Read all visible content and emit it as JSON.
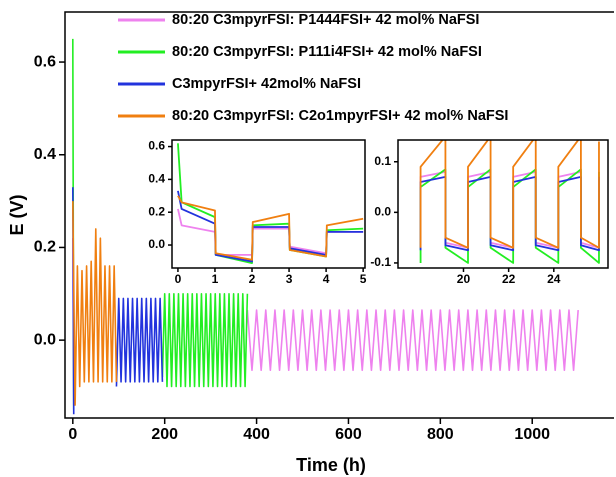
{
  "chart_data": [
    {
      "type": "line",
      "xlabel": "Time (h)",
      "ylabel": "E (V)",
      "xlim": [
        -17,
        1178
      ],
      "ylim": [
        -0.168,
        0.708
      ],
      "xticks": [
        0,
        200,
        400,
        600,
        800,
        1000
      ],
      "yticks": [
        {
          "value": 0,
          "label": "0.0"
        },
        0.2,
        0.4,
        0.6
      ],
      "legend": "top",
      "series": [
        {
          "name": "80:20 C3mpyrFSI: P1444FSI+ 42 mol% NaFSI",
          "color": "#ee82ee",
          "x": [
            0,
            2,
            100,
            380,
            390,
            400,
            410,
            420,
            430,
            440,
            450,
            460,
            470,
            480,
            490,
            500,
            510,
            520,
            530,
            540,
            550,
            560,
            570,
            580,
            590,
            600,
            610,
            620,
            630,
            640,
            650,
            660,
            670,
            680,
            690,
            700,
            710,
            720,
            730,
            740,
            750,
            760,
            770,
            780,
            790,
            800,
            810,
            820,
            830,
            840,
            850,
            860,
            870,
            880,
            890,
            900,
            910,
            920,
            930,
            940,
            950,
            960,
            970,
            980,
            990,
            1000,
            1010,
            1020,
            1030,
            1040,
            1050,
            1060,
            1070,
            1080,
            1090,
            1100
          ],
          "values": [
            0.22,
            -0.14,
            null,
            0.065,
            -0.065,
            0.065,
            -0.065,
            0.065,
            -0.065,
            0.065,
            -0.065,
            0.065,
            -0.065,
            0.065,
            -0.065,
            0.065,
            -0.065,
            0.065,
            -0.065,
            0.065,
            -0.065,
            0.065,
            -0.065,
            0.065,
            -0.065,
            0.065,
            -0.065,
            0.065,
            -0.065,
            0.065,
            -0.065,
            0.065,
            -0.065,
            0.065,
            -0.065,
            0.065,
            -0.065,
            0.065,
            -0.065,
            0.065,
            -0.065,
            0.065,
            -0.065,
            0.065,
            -0.065,
            0.065,
            -0.065,
            0.065,
            -0.065,
            0.065,
            -0.065,
            0.065,
            -0.065,
            0.065,
            -0.065,
            0.065,
            -0.065,
            0.065,
            -0.065,
            0.065,
            -0.065,
            0.065,
            -0.065,
            0.065,
            -0.065,
            0.065,
            -0.065,
            0.065,
            -0.065,
            0.065,
            -0.065,
            0.065,
            -0.065,
            0.065,
            -0.065,
            0.065
          ]
        },
        {
          "name": "80:20 C3mpyrFSI: P111i4FSI+ 42 mol% NaFSI",
          "color": "#22ee22",
          "x": [
            0,
            2,
            100,
            195,
            200,
            205,
            210,
            215,
            220,
            225,
            230,
            235,
            240,
            245,
            250,
            255,
            260,
            265,
            270,
            275,
            280,
            285,
            290,
            295,
            300,
            305,
            310,
            315,
            320,
            325,
            330,
            335,
            340,
            345,
            350,
            355,
            360,
            365,
            370,
            375,
            380
          ],
          "values": [
            0.65,
            -0.15,
            null,
            -0.08,
            0.1,
            -0.1,
            0.1,
            -0.1,
            0.1,
            -0.1,
            0.1,
            -0.1,
            0.1,
            -0.1,
            0.1,
            -0.1,
            0.1,
            -0.1,
            0.1,
            -0.1,
            0.1,
            -0.1,
            0.1,
            -0.1,
            0.1,
            -0.1,
            0.1,
            -0.1,
            0.1,
            -0.1,
            0.1,
            -0.1,
            0.1,
            -0.1,
            0.1,
            -0.1,
            0.1,
            -0.1,
            0.1,
            -0.1,
            0.1
          ]
        },
        {
          "name": "C3mpyrFSI+ 42mol% NaFSI",
          "color": "#2233dd",
          "x": [
            0,
            2,
            50,
            95,
            100,
            105,
            110,
            115,
            120,
            125,
            130,
            135,
            140,
            145,
            150,
            155,
            160,
            165,
            170,
            175,
            180,
            185,
            190,
            195
          ],
          "values": [
            0.33,
            -0.16,
            null,
            -0.1,
            0.09,
            -0.09,
            0.09,
            -0.09,
            0.09,
            -0.09,
            0.09,
            -0.09,
            0.09,
            -0.09,
            0.09,
            -0.09,
            0.09,
            -0.09,
            0.09,
            -0.09,
            0.09,
            -0.09,
            0.09,
            -0.09
          ]
        },
        {
          "name": "80:20 C3mpyrFSI: C2o1mpyrFSI+ 42 mol% NaFSI",
          "color": "#f07f10",
          "x": [
            0,
            5,
            10,
            15,
            20,
            25,
            30,
            35,
            40,
            45,
            50,
            55,
            60,
            65,
            70,
            75,
            80,
            85,
            90,
            95
          ],
          "values": [
            0.3,
            -0.14,
            0.16,
            -0.1,
            0.15,
            -0.09,
            0.16,
            -0.09,
            0.17,
            -0.09,
            0.24,
            -0.09,
            0.22,
            -0.09,
            0.16,
            -0.09,
            0.16,
            -0.09,
            0.16,
            -0.09
          ]
        }
      ]
    },
    {
      "type": "line",
      "xlim": [
        -0.16,
        5.05
      ],
      "ylim": [
        -0.14,
        0.64
      ],
      "xticks": [
        0,
        1,
        2,
        3,
        4,
        5
      ],
      "yticks": [
        {
          "value": 0,
          "label": "0.0"
        },
        0.2,
        0.4,
        0.6
      ],
      "x": [
        0,
        0.1,
        1,
        1.02,
        2,
        2.02,
        3,
        3.02,
        4,
        4.02,
        5
      ],
      "series": [
        {
          "color": "#ee82ee",
          "values": [
            0.22,
            0.12,
            0.08,
            -0.06,
            -0.06,
            0.1,
            0.1,
            -0.01,
            -0.05,
            0.08,
            0.08
          ]
        },
        {
          "color": "#22ee22",
          "values": [
            0.62,
            0.26,
            0.17,
            -0.06,
            -0.11,
            0.12,
            0.13,
            -0.03,
            -0.07,
            0.09,
            0.1
          ]
        },
        {
          "color": "#2233dd",
          "values": [
            0.33,
            0.22,
            0.13,
            -0.06,
            -0.1,
            0.11,
            0.11,
            -0.02,
            -0.06,
            0.08,
            0.08
          ]
        },
        {
          "color": "#f07f10",
          "values": [
            0.3,
            0.26,
            0.21,
            -0.05,
            -0.09,
            0.14,
            0.19,
            -0.03,
            -0.07,
            0.12,
            0.16
          ]
        }
      ]
    },
    {
      "type": "line",
      "xlim": [
        17.1,
        26.4
      ],
      "ylim": [
        -0.11,
        0.143
      ],
      "xticks": [
        20,
        22,
        24
      ],
      "yticks": [
        -0.1,
        {
          "value": 0,
          "label": "0.0"
        },
        0.1
      ],
      "x": [
        18.1,
        18.1,
        19.2,
        19.2,
        20.2,
        20.2,
        21.2,
        21.2,
        22.2,
        22.2,
        23.2,
        23.2,
        24.2,
        24.2,
        25.2,
        25.2,
        26.0,
        26.0
      ],
      "series": [
        {
          "color": "#ee82ee",
          "values": [
            -0.07,
            0.07,
            0.08,
            -0.06,
            -0.07,
            0.07,
            0.08,
            -0.06,
            -0.07,
            0.07,
            0.08,
            -0.06,
            -0.07,
            0.07,
            0.08,
            -0.06,
            -0.07,
            0.07
          ]
        },
        {
          "color": "#22ee22",
          "values": [
            -0.1,
            0.05,
            0.085,
            -0.07,
            -0.1,
            0.05,
            0.085,
            -0.07,
            -0.1,
            0.05,
            0.085,
            -0.07,
            -0.1,
            0.05,
            0.085,
            -0.07,
            -0.1,
            0.08
          ]
        },
        {
          "color": "#2233dd",
          "values": [
            -0.075,
            0.06,
            0.07,
            -0.065,
            -0.075,
            0.06,
            0.07,
            -0.065,
            -0.075,
            0.06,
            0.07,
            -0.065,
            -0.075,
            0.06,
            0.07,
            -0.065,
            -0.075,
            0.07
          ]
        },
        {
          "color": "#f07f10",
          "values": [
            -0.07,
            0.09,
            0.15,
            -0.05,
            -0.07,
            0.09,
            0.15,
            -0.05,
            -0.07,
            0.09,
            0.15,
            -0.05,
            -0.07,
            0.09,
            0.15,
            -0.05,
            -0.07,
            0.14
          ]
        }
      ]
    }
  ]
}
